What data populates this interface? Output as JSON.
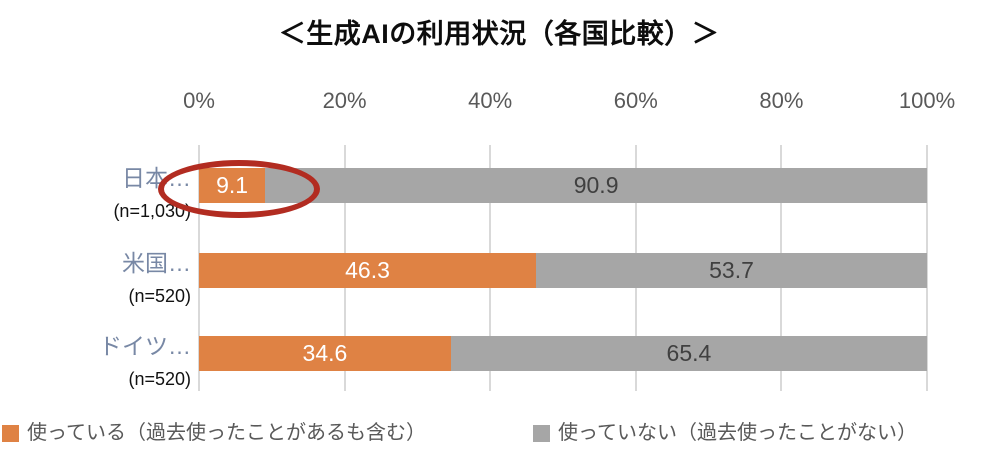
{
  "chart_data": {
    "type": "bar",
    "orientation": "horizontal",
    "stacked": true,
    "title": "＜生成AIの利用状況（各国比較）＞",
    "categories": [
      "日本…",
      "米国…",
      "ドイツ…"
    ],
    "category_sublabels": [
      "(n=1,030)",
      "(n=520)",
      "(n=520)"
    ],
    "series": [
      {
        "name": "使っている（過去使ったことがあるも含む）",
        "color": "#df8244",
        "label_color": "#ffffff",
        "values": [
          9.1,
          46.3,
          34.6
        ]
      },
      {
        "name": "使っていない（過去使ったことがない）",
        "color": "#a6a6a6",
        "label_color": "#404040",
        "values": [
          90.9,
          53.7,
          65.4
        ]
      }
    ],
    "x_ticks": [
      "0%",
      "20%",
      "40%",
      "60%",
      "80%",
      "100%"
    ],
    "xlim": [
      0,
      100
    ],
    "grid": true,
    "legend_position": "bottom",
    "annotations": [
      {
        "type": "ellipse",
        "target": "japan-used-segment",
        "value_circled": "9.1",
        "color": "#b22c21"
      }
    ],
    "colors": {
      "title_text": "#0d0d0d",
      "axis_text": "#595959",
      "category_text": "#7888a5",
      "sublabel_text": "#111111",
      "gridline": "#d9d9d9",
      "legend_text": "#595959"
    }
  }
}
